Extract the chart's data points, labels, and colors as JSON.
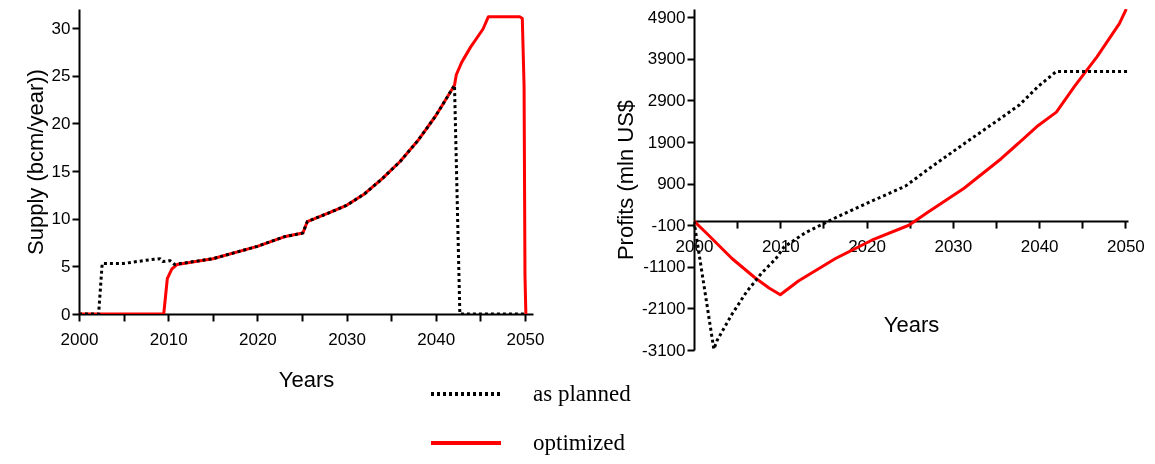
{
  "chart_data": [
    {
      "type": "line",
      "xlabel": "Years",
      "ylabel": "Supply (bcm/year))",
      "xlim": [
        2000,
        2050.9
      ],
      "xticks": [
        2000,
        {
          "value": 2005,
          "label": null
        },
        2010,
        {
          "value": 2015,
          "label": null
        },
        2020,
        {
          "value": 2025,
          "label": null
        },
        2030,
        {
          "value": 2035,
          "label": null
        },
        2040,
        {
          "value": 2045,
          "label": null
        },
        2050
      ],
      "ylim": [
        0,
        32
      ],
      "yticks": [
        0,
        5,
        10,
        15,
        20,
        25,
        30
      ],
      "legend": "bottom",
      "series": [
        {
          "name": "as planned",
          "color": "#000000",
          "line_style": "dotted",
          "x": [
            2000,
            2002.2,
            2002.6,
            2005,
            2008,
            2009.1,
            2009.4,
            2010.2,
            2010.7,
            2015,
            2020,
            2023,
            2025.1,
            2025.6,
            2028,
            2030,
            2032,
            2034,
            2036,
            2038,
            2040,
            2042.1,
            2042.7,
            2046,
            2050
          ],
          "values": [
            0,
            0,
            5.3,
            5.3,
            5.7,
            5.8,
            5.5,
            5.6,
            5.2,
            5.8,
            7.1,
            8.1,
            8.5,
            9.7,
            10.6,
            11.4,
            12.6,
            14.2,
            16.0,
            18.2,
            20.8,
            24.0,
            0,
            0,
            0
          ]
        },
        {
          "name": "optimized",
          "color": "#ff0000",
          "line_style": "solid",
          "x": [
            2000,
            2002.4,
            2009.5,
            2009.9,
            2010.4,
            2011,
            2015,
            2020,
            2023,
            2025.1,
            2025.6,
            2028,
            2030,
            2032,
            2034,
            2036,
            2038,
            2040,
            2042.1,
            2042.3,
            2042.9,
            2043.9,
            2045.3,
            2045.9,
            2049.4,
            2049.7,
            2049.9,
            2050,
            2050.1
          ],
          "values": [
            0,
            0,
            0,
            3.7,
            4.7,
            5.2,
            5.8,
            7.1,
            8.1,
            8.5,
            9.7,
            10.6,
            11.4,
            12.6,
            14.2,
            16.0,
            18.2,
            20.8,
            24.0,
            25.1,
            26.4,
            28.0,
            29.9,
            31.2,
            31.2,
            31.0,
            23.9,
            4.1,
            0
          ]
        }
      ]
    },
    {
      "type": "line",
      "xlabel": "Years",
      "ylabel": "Profits (mln US$",
      "xlim": [
        2000,
        2050.3
      ],
      "xticks": [
        2000,
        {
          "value": 2005,
          "label": null
        },
        2010,
        {
          "value": 2015,
          "label": null
        },
        2020,
        {
          "value": 2025,
          "label": null
        },
        2030,
        {
          "value": 2035,
          "label": null
        },
        2040,
        {
          "value": 2045,
          "label": null
        },
        2050
      ],
      "ylim": [
        -3100,
        5100
      ],
      "yticks": [
        -3100,
        -2100,
        -1100,
        -100,
        900,
        1900,
        2900,
        3900,
        4900
      ],
      "series": [
        {
          "name": "as planned",
          "color": "#000000",
          "line_style": "dotted",
          "x": [
            2000,
            2002.3,
            2002.7,
            2004.4,
            2006.1,
            2007.8,
            2009.5,
            2010.4,
            2012.9,
            2016.4,
            2020.6,
            2024.5,
            2027.1,
            2031.3,
            2035.6,
            2037.7,
            2039.9,
            2042,
            2050.2
          ],
          "values": [
            0,
            -3080,
            -2860,
            -2240,
            -1700,
            -1260,
            -900,
            -630,
            -280,
            80,
            480,
            840,
            1240,
            1860,
            2480,
            2790,
            3240,
            3600,
            3600
          ]
        },
        {
          "name": "optimized",
          "color": "#ff0000",
          "line_style": "solid",
          "x": [
            2000,
            2001.4,
            2004.4,
            2007,
            2008.7,
            2010,
            2012.1,
            2016.4,
            2020.6,
            2024.9,
            2027.1,
            2031.3,
            2035.6,
            2039.9,
            2042,
            2044.1,
            2046.7,
            2049.3,
            2050.1
          ],
          "values": [
            0,
            -280,
            -900,
            -1350,
            -1610,
            -1770,
            -1440,
            -900,
            -460,
            -100,
            210,
            790,
            1500,
            2300,
            2620,
            3240,
            3950,
            4750,
            5100
          ]
        }
      ]
    }
  ]
}
